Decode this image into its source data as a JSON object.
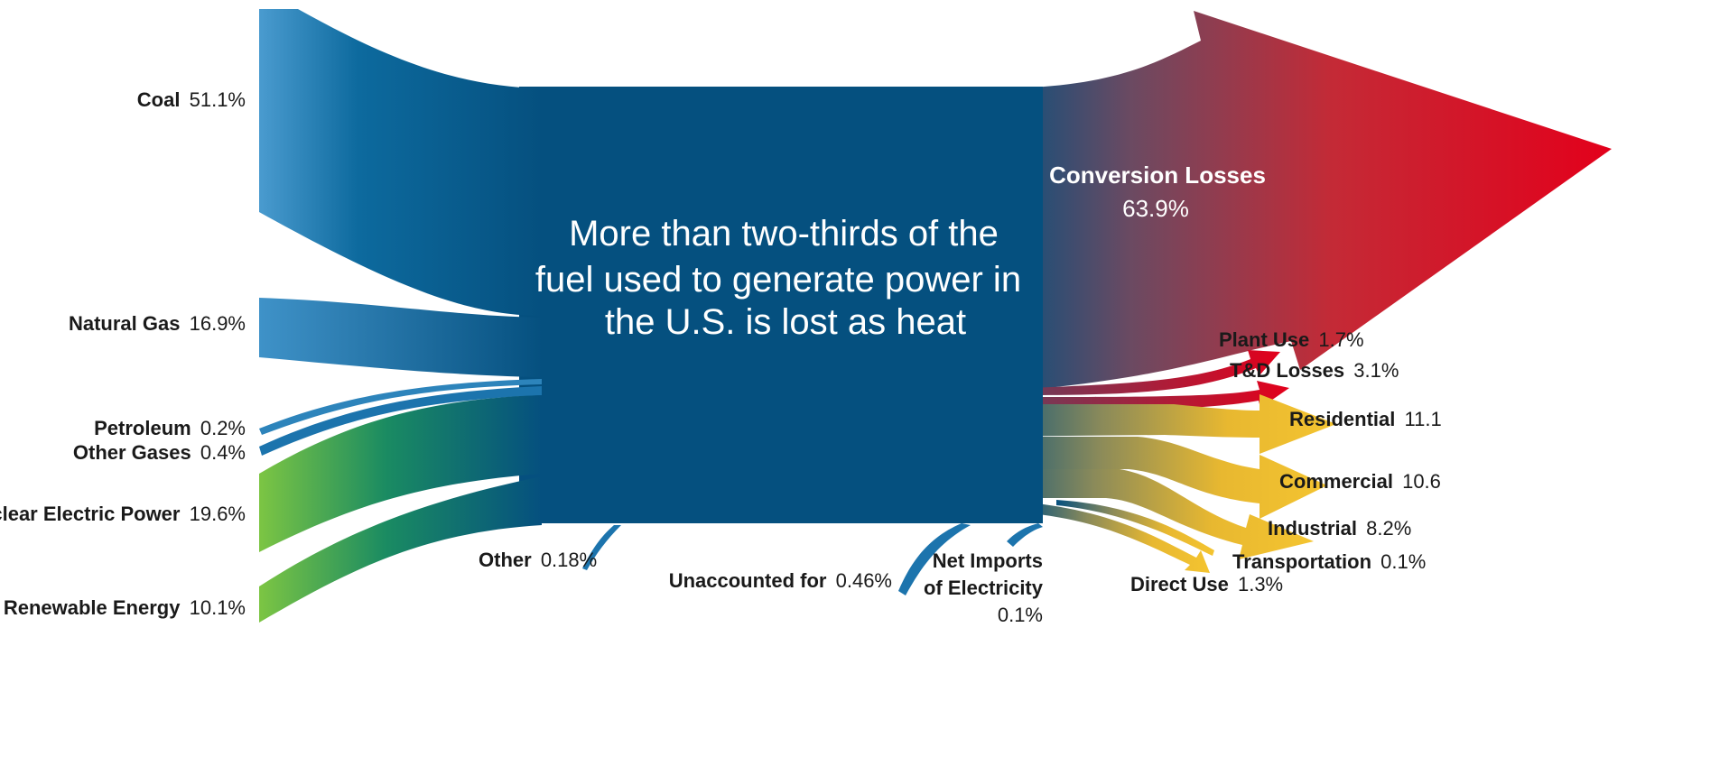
{
  "headline": {
    "line1": "More than two-thirds of the",
    "line2": "fuel used to generate power in",
    "line3": "the U.S. is lost as heat"
  },
  "inputs": [
    {
      "name": "Coal",
      "value": "51.1%"
    },
    {
      "name": "Natural Gas",
      "value": "16.9%"
    },
    {
      "name": "Petroleum",
      "value": "0.2%"
    },
    {
      "name": "Other Gases",
      "value": "0.4%"
    },
    {
      "name": "Nuclear Electric Power",
      "value": "19.6%"
    },
    {
      "name": "Renewable Energy",
      "value": "10.1%"
    }
  ],
  "bottom_inputs": [
    {
      "name": "Other",
      "value": "0.18%"
    },
    {
      "name": "Unaccounted for",
      "value": "0.46%"
    },
    {
      "name_line1": "Net Imports",
      "name_line2": "of Electricity",
      "value": "0.1%"
    }
  ],
  "outputs": {
    "conversion_losses": {
      "name": "Conversion Losses",
      "value": "63.9%"
    },
    "plant_use": {
      "name": "Plant Use",
      "value": "1.7%"
    },
    "td_losses": {
      "name": "T&D Losses",
      "value": "3.1%"
    },
    "residential": {
      "name": "Residential",
      "value": "11.1"
    },
    "commercial": {
      "name": "Commercial",
      "value": "10.6"
    },
    "industrial": {
      "name": "Industrial",
      "value": "8.2%"
    },
    "transportation": {
      "name": "Transportation",
      "value": "0.1%"
    },
    "direct_use": {
      "name": "Direct Use",
      "value": "1.3%"
    }
  },
  "colors": {
    "main_blue": "#05507f",
    "loss_red": "#e3001b",
    "use_yellow": "#f2c12e",
    "input_green": "#74c043",
    "input_lightblue": "#3a8ec4"
  }
}
